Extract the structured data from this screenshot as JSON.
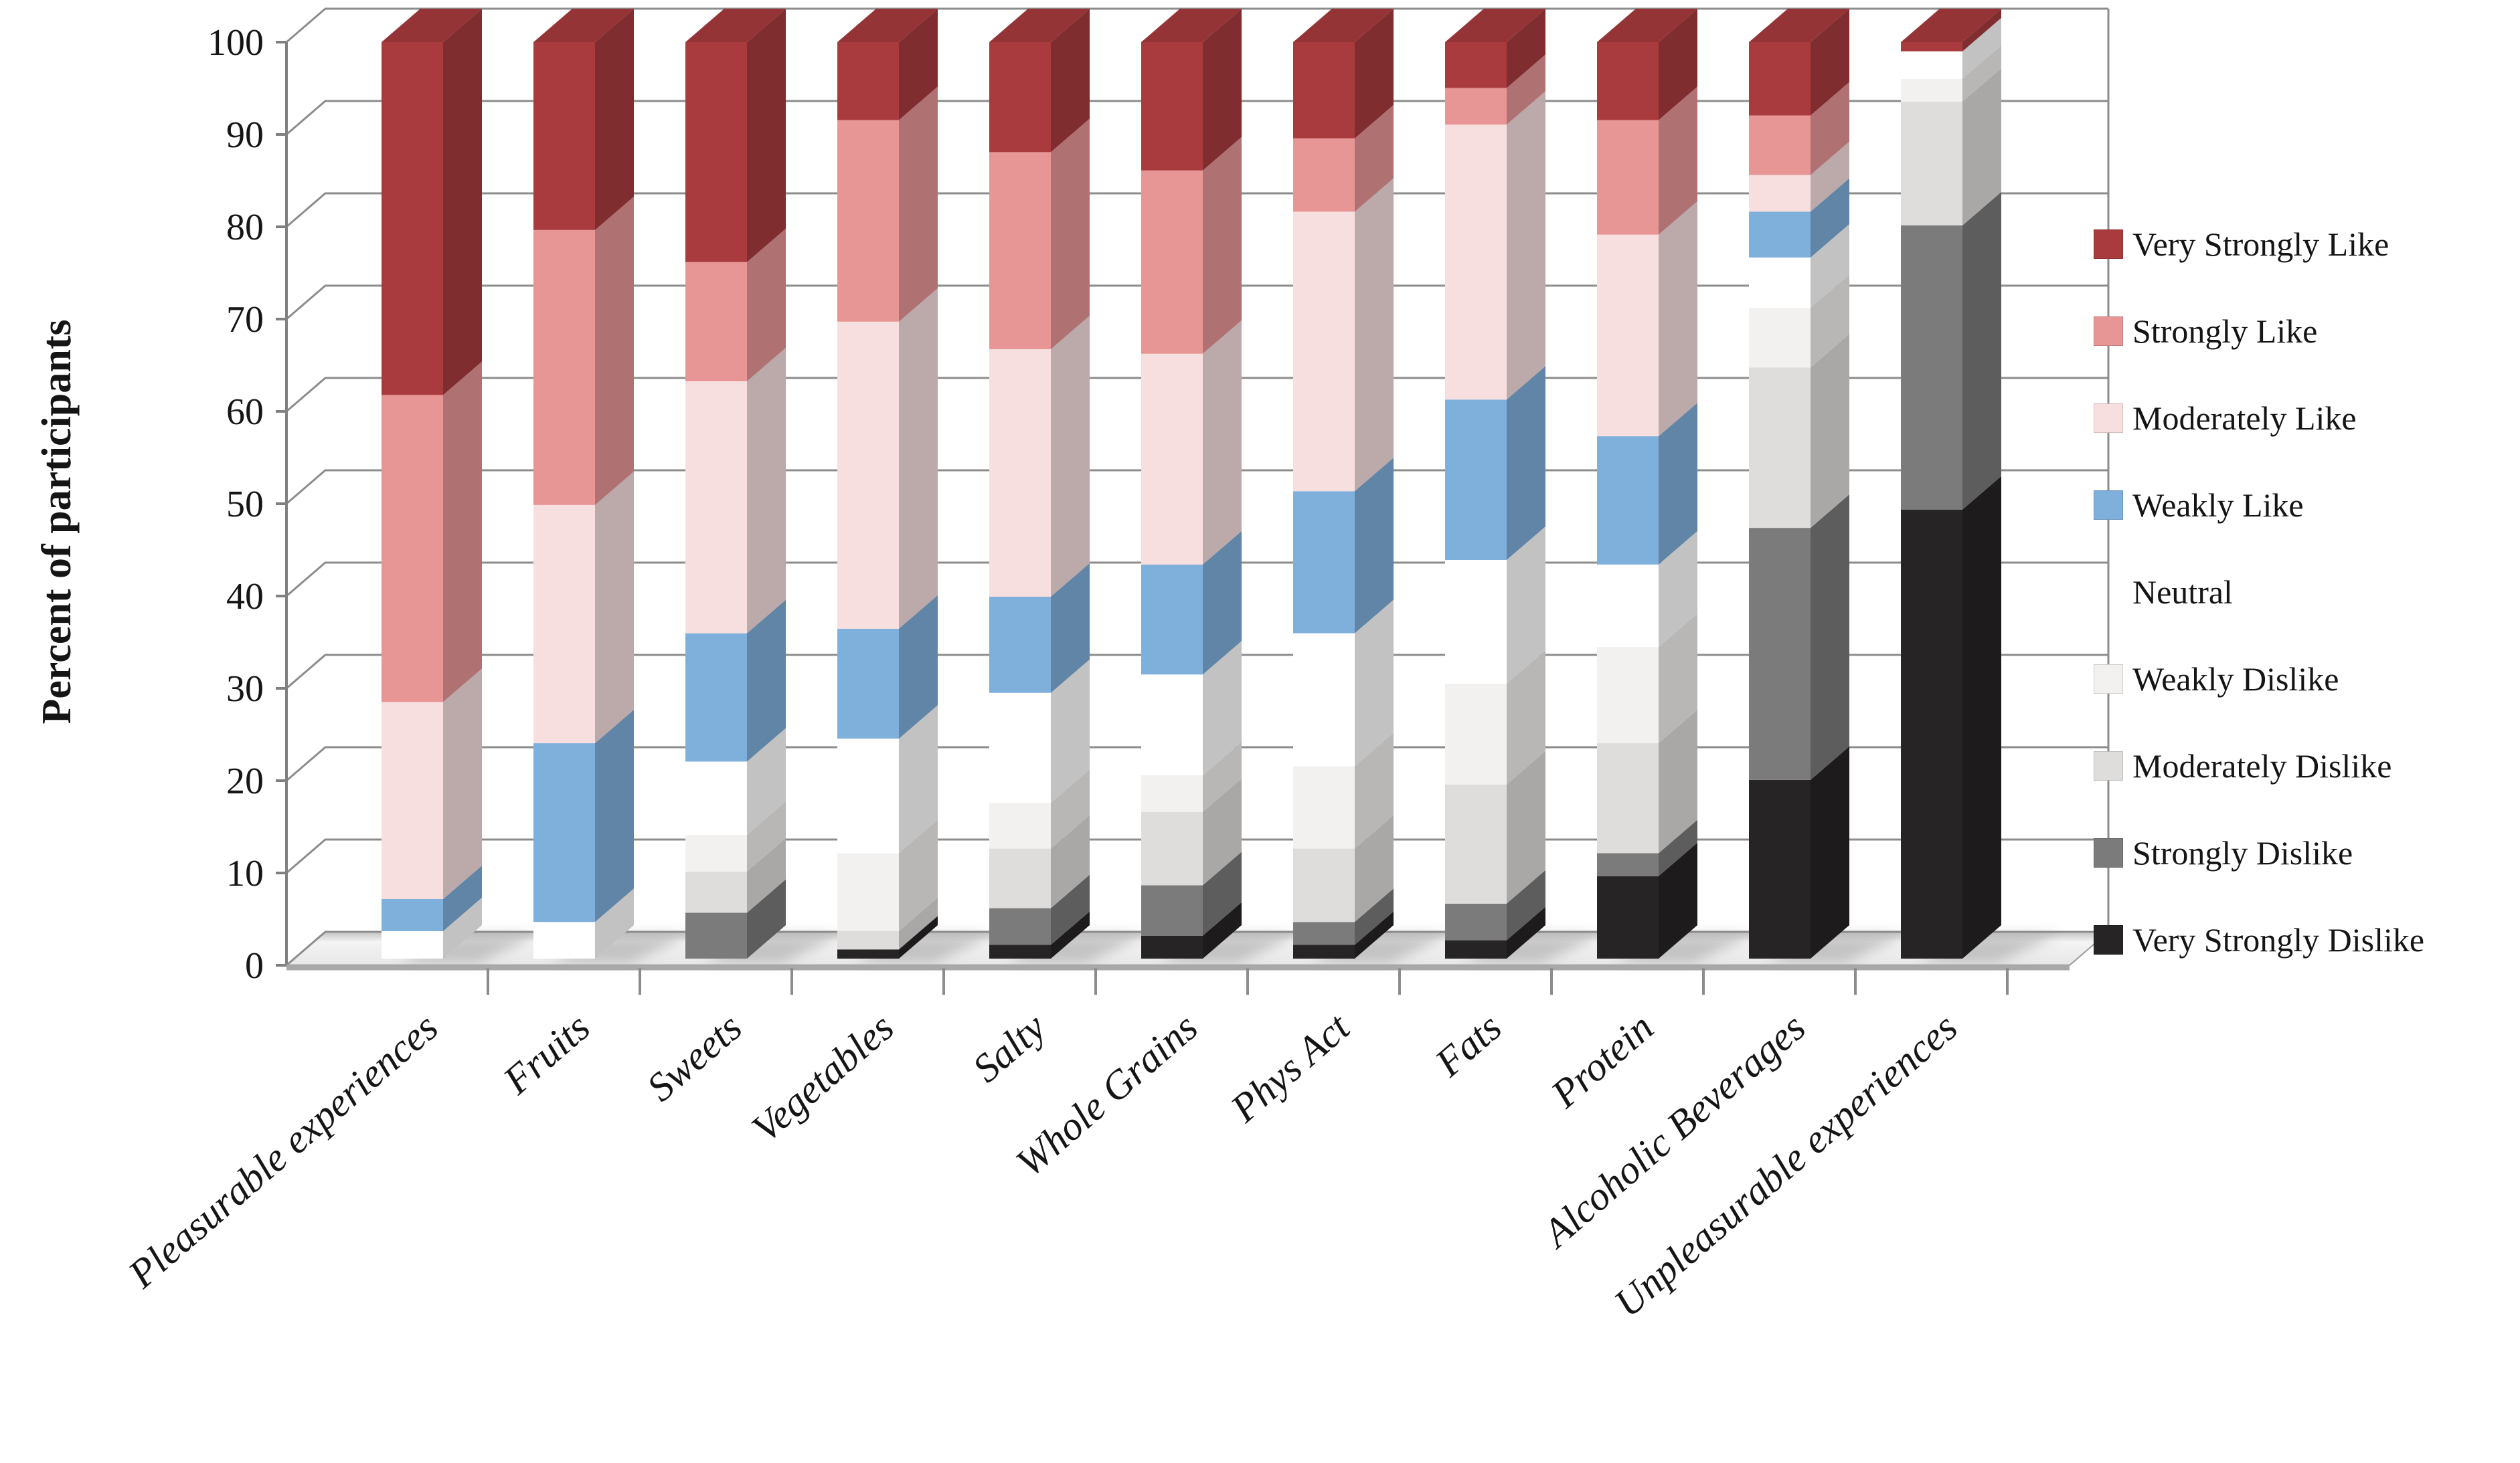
{
  "page": {
    "background": "#FFFFFF"
  },
  "y_axis": {
    "title": "Percent of participants",
    "min": 0,
    "max": 100,
    "tick_step": 10,
    "ticks": [
      "0",
      "10",
      "20",
      "30",
      "40",
      "50",
      "60",
      "70",
      "80",
      "90",
      "100"
    ]
  },
  "x_axis": {
    "categories": [
      "Pleasurable experiences",
      "Fruits",
      "Sweets",
      "Vegetables",
      "Salty",
      "Whole Grains",
      "Phys Act",
      "Fats",
      "Protein",
      "Alcoholic Beverages",
      "Unpleasurable experiences"
    ]
  },
  "legend": {
    "position": "right",
    "items": [
      {
        "label": "Very Strongly Like",
        "color": "#A93B3E",
        "swatch_visible": true
      },
      {
        "label": "Strongly Like",
        "color": "#E89596",
        "swatch_visible": true
      },
      {
        "label": "Moderately Like",
        "color": "#F8DFDF",
        "swatch_visible": true
      },
      {
        "label": "Weakly Like",
        "color": "#7FAFDB",
        "swatch_visible": true
      },
      {
        "label": "Neutral",
        "color": "#FFFFFF",
        "swatch_visible": false
      },
      {
        "label": "Weakly Dislike",
        "color": "#F2F1F0",
        "swatch_visible": true
      },
      {
        "label": "Moderately Dislike",
        "color": "#DEDDDC",
        "swatch_visible": true
      },
      {
        "label": "Strongly Dislike",
        "color": "#7C7B7B",
        "swatch_visible": true
      },
      {
        "label": "Very Strongly Dislike",
        "color": "#262424",
        "swatch_visible": true
      }
    ]
  },
  "chart_data": {
    "type": "bar",
    "stacked": true,
    "percent_stacked": true,
    "projection": "3d",
    "title": "",
    "xlabel": "",
    "ylabel": "Percent of participants",
    "ylim": [
      0,
      100
    ],
    "grid": true,
    "legend_position": "right",
    "categories": [
      "Pleasurable experiences",
      "Fruits",
      "Sweets",
      "Vegetables",
      "Salty",
      "Whole Grains",
      "Phys Act",
      "Fats",
      "Protein",
      "Alcoholic Beverages",
      "Unpleasurable experiences"
    ],
    "series": [
      {
        "name": "Very Strongly Like",
        "color": "#A93B3E",
        "values": [
          38.5,
          20.5,
          24,
          8.5,
          12,
          14,
          10.5,
          5,
          8.5,
          8,
          1
        ]
      },
      {
        "name": "Strongly Like",
        "color": "#E89596",
        "values": [
          33.5,
          30,
          13,
          22,
          21.5,
          20,
          8,
          4,
          12.5,
          6.5,
          0
        ]
      },
      {
        "name": "Moderately Like",
        "color": "#F8DFDF",
        "values": [
          21.5,
          26,
          27.5,
          33.5,
          27,
          23,
          30.5,
          30,
          22,
          4,
          0
        ]
      },
      {
        "name": "Weakly Like",
        "color": "#7FAFDB",
        "values": [
          3.5,
          19.5,
          14,
          12,
          10.5,
          12,
          15.5,
          17.5,
          14,
          5,
          0
        ]
      },
      {
        "name": "Neutral",
        "color": "#FFFFFF",
        "values": [
          3,
          4,
          8,
          12.5,
          12,
          11,
          14.5,
          13.5,
          9,
          5.5,
          3
        ]
      },
      {
        "name": "Weakly Dislike",
        "color": "#F2F1F0",
        "values": [
          0,
          0,
          4,
          8.5,
          5,
          4,
          9,
          11,
          10.5,
          6.5,
          2.5
        ]
      },
      {
        "name": "Moderately Dislike",
        "color": "#DEDDDC",
        "values": [
          0,
          0,
          4.5,
          2,
          6.5,
          8,
          8,
          13,
          12,
          17.5,
          13.5
        ]
      },
      {
        "name": "Strongly Dislike",
        "color": "#7C7B7B",
        "values": [
          0,
          0,
          5,
          0,
          4,
          5.5,
          2.5,
          4,
          2.5,
          27.5,
          31
        ]
      },
      {
        "name": "Very Strongly Dislike",
        "color": "#262424",
        "values": [
          0,
          0,
          0,
          1,
          1.5,
          2.5,
          1.5,
          2,
          9,
          19.5,
          49
        ]
      }
    ],
    "stack_order_bottom_to_top": [
      "Very Strongly Dislike",
      "Strongly Dislike",
      "Moderately Dislike",
      "Weakly Dislike",
      "Neutral",
      "Weakly Like",
      "Moderately Like",
      "Strongly Like",
      "Very Strongly Like"
    ]
  }
}
